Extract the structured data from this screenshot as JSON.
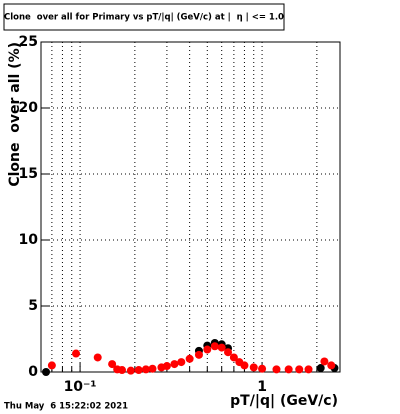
{
  "chart_data": {
    "type": "scatter",
    "title": "Clone  over all for Primary vs pT/|q| (GeV/c) at |  η | <= 1.0",
    "xlabel": "pT/|q| (GeV/c)",
    "ylabel": "Clone  over all (%)",
    "timestamp": "Thu May  6 15:22:02 2021",
    "xlog": true,
    "grid": true,
    "xlim": [
      0.061,
      2.68
    ],
    "ylim": [
      0,
      25
    ],
    "xticks": [
      {
        "value": 0.1,
        "label": "10⁻¹"
      },
      {
        "value": 1,
        "label": "1"
      }
    ],
    "xminor": [
      0.07,
      0.08,
      0.09,
      0.2,
      0.3,
      0.4,
      0.5,
      0.6,
      0.7,
      0.8,
      0.9,
      2
    ],
    "yticks": [
      0,
      5,
      10,
      15,
      20,
      25
    ],
    "series": [
      {
        "color": "#000000",
        "x": [
          0.065,
          0.45,
          0.5,
          0.55,
          0.6,
          0.65,
          2.1,
          2.5
        ],
        "values": [
          0,
          1.6,
          2.0,
          2.2,
          2.1,
          1.8,
          0.3,
          0.3
        ]
      },
      {
        "color": "#ff0000",
        "x": [
          0.07,
          0.095,
          0.125,
          0.15,
          0.16,
          0.17,
          0.19,
          0.21,
          0.23,
          0.25,
          0.28,
          0.3,
          0.33,
          0.36,
          0.4,
          0.45,
          0.5,
          0.55,
          0.6,
          0.65,
          0.7,
          0.75,
          0.8,
          0.9,
          1.0,
          1.2,
          1.4,
          1.6,
          1.8,
          2.2,
          2.4
        ],
        "values": [
          0.5,
          1.4,
          1.1,
          0.6,
          0.2,
          0.15,
          0.1,
          0.15,
          0.2,
          0.25,
          0.35,
          0.45,
          0.6,
          0.75,
          1.0,
          1.3,
          1.7,
          1.95,
          1.85,
          1.5,
          1.1,
          0.75,
          0.5,
          0.35,
          0.25,
          0.2,
          0.2,
          0.2,
          0.2,
          0.8,
          0.5
        ]
      }
    ]
  }
}
